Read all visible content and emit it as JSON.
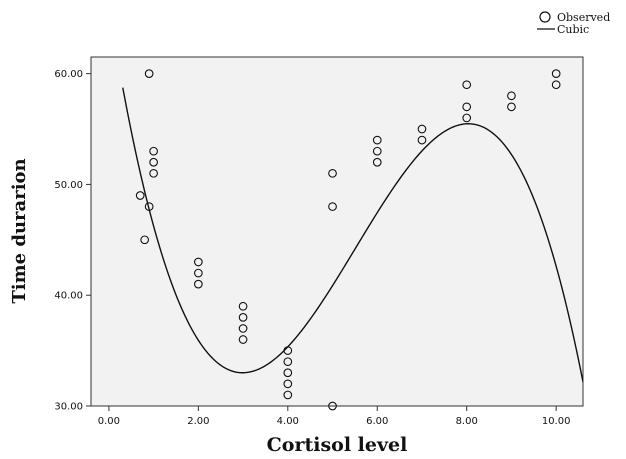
{
  "chart_data": {
    "type": "scatter",
    "xlabel": "Cortisol level",
    "ylabel": "Time durarion",
    "xlim": [
      -0.4,
      10.6
    ],
    "ylim": [
      30,
      61.5
    ],
    "xticks": [
      0,
      2,
      4,
      6,
      8,
      10
    ],
    "xtick_labels": [
      "0.00",
      "2.00",
      "4.00",
      "6.00",
      "8.00",
      "10.00"
    ],
    "yticks": [
      30,
      40,
      50,
      60
    ],
    "ytick_labels": [
      "30.00",
      "40.00",
      "50.00",
      "60.00"
    ],
    "grid": false,
    "legend_position": "top-right",
    "plot_background": "#f2f2f2",
    "series": [
      {
        "name": "Observed",
        "type": "scatter",
        "marker": "open-circle",
        "points": [
          [
            0.7,
            49
          ],
          [
            0.8,
            45
          ],
          [
            0.9,
            48
          ],
          [
            0.9,
            60
          ],
          [
            1.0,
            53
          ],
          [
            1.0,
            52
          ],
          [
            1.0,
            51
          ],
          [
            2.0,
            43
          ],
          [
            2.0,
            42
          ],
          [
            2.0,
            41
          ],
          [
            3.0,
            39
          ],
          [
            3.0,
            38
          ],
          [
            3.0,
            37
          ],
          [
            3.0,
            36
          ],
          [
            4.0,
            35
          ],
          [
            4.0,
            34
          ],
          [
            4.0,
            33
          ],
          [
            4.0,
            32
          ],
          [
            4.0,
            31
          ],
          [
            5.0,
            51
          ],
          [
            5.0,
            48
          ],
          [
            5.0,
            30
          ],
          [
            6.0,
            54
          ],
          [
            6.0,
            53
          ],
          [
            6.0,
            52
          ],
          [
            7.0,
            55
          ],
          [
            7.0,
            54
          ],
          [
            8.0,
            59
          ],
          [
            8.0,
            57
          ],
          [
            8.0,
            56
          ],
          [
            9.0,
            58
          ],
          [
            9.0,
            57
          ],
          [
            10.0,
            60
          ],
          [
            10.0,
            59
          ]
        ]
      },
      {
        "name": "Cubic",
        "type": "line",
        "coefficients": [
          66.01,
          -25.21,
          5.785,
          -0.3498
        ],
        "x_range": [
          0.31,
          10.6
        ]
      }
    ]
  }
}
